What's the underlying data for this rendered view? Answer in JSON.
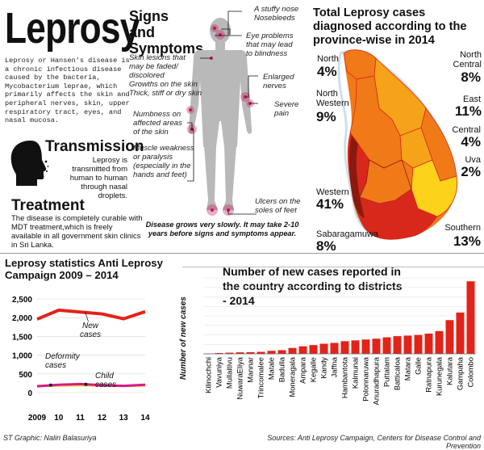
{
  "title": "Leprosy",
  "intro": "Leprosy or Hansen's disease is a chronic infectious disease caused by the bacteria, Mycobacterium leprae, which primarily affects the skin and peripheral nerves, skin, upper respiratory tract, eyes, and nasal mucosa.",
  "transmission": {
    "heading": "Transmission",
    "text": "Leprosy is transmitted from human to human through nasal droplets.",
    "icon": "coughing-head-icon"
  },
  "treatment": {
    "heading": "Treatment",
    "text": "The disease is completely curable with MDT treatment,which is freely available in all government skin clinics in Sri Lanka."
  },
  "symptoms": {
    "heading": "Signs and Symptoms",
    "labels": {
      "nose": "A stuffy nose\nNosebleeds",
      "eyes": "Eye problems\nthat may lead\nto blindness",
      "skin": "Skin lesions that\nmay be faded/\ndiscolored\nGrowths on the skin\nThick, stiff or dry skin",
      "nerves": "Enlarged\nnerves",
      "pain": "Severe\npain",
      "numb": "Numbness on\naffected areas\nof the skin",
      "muscle": "Muscle weakness\nor paralysis\n(especially in the\nhands and feet)",
      "ulcers": "Ulcers on the\nsoles of feet"
    },
    "note": "Disease grows very slowly. It may take 2-10 years before signs and symptoms appear."
  },
  "map": {
    "title": "Total Leprosy cases diagnosed according to the province-wise in 2014",
    "provinces": [
      {
        "name": "North",
        "pct": "4%"
      },
      {
        "name": "North Western",
        "pct": "9%"
      },
      {
        "name": "North Central",
        "pct": "8%"
      },
      {
        "name": "East",
        "pct": "11%"
      },
      {
        "name": "Central",
        "pct": "4%"
      },
      {
        "name": "Uva",
        "pct": "2%"
      },
      {
        "name": "Western",
        "pct": "41%"
      },
      {
        "name": "Sabaragamuwa",
        "pct": "8%"
      },
      {
        "name": "Southern",
        "pct": "13%"
      }
    ],
    "colors": {
      "dark": "#8a1a10",
      "red": "#d8281c",
      "orange": "#f07a18",
      "amber": "#f5a319",
      "yellow": "#fcd21a",
      "sea": "#c8ddea"
    }
  },
  "chart_data": [
    {
      "type": "line",
      "title": "Leprosy statistics Anti Leprosy Campaign 2009 – 2014",
      "x": [
        "2009",
        "10",
        "11",
        "12",
        "13",
        "14"
      ],
      "ylim": [
        0,
        2500
      ],
      "yticks": [
        "0",
        "500",
        "1,000",
        "1,500",
        "2,000",
        "2,500"
      ],
      "series": [
        {
          "name": "New cases",
          "values": [
            1960,
            2200,
            2150,
            2100,
            1970,
            2160
          ],
          "color": "#e2231a"
        },
        {
          "name": "Deformity cases",
          "values": [
            180,
            190,
            200,
            190,
            180,
            190
          ],
          "color": "#f4d21a"
        },
        {
          "name": "Child cases",
          "values": [
            170,
            210,
            230,
            200,
            180,
            210
          ],
          "color": "#d61a8a"
        }
      ]
    },
    {
      "type": "bar",
      "title": "Number of new cases reported in the country according to districts - 2014",
      "ylabel": "Number of new cases",
      "categories": [
        "Kilinochchi",
        "Vavuniya",
        "Mullaitivu",
        "NuwaraEliya",
        "Mannar",
        "Trincomalee",
        "Matale",
        "Badulla",
        "Moneragala",
        "Ampara",
        "Kegalle",
        "Kandy",
        "Jaffna",
        "Hambantota",
        "Kalmunai",
        "Polonnaruwa",
        "Anuradhapura",
        "Puttalam",
        "Batticaloa",
        "Matara",
        "Galle",
        "Ratnapura",
        "Kurunegala",
        "Kalutara",
        "Gampaha",
        "Colombo"
      ],
      "values": [
        2,
        5,
        7,
        9,
        10,
        12,
        18,
        22,
        35,
        45,
        52,
        60,
        65,
        75,
        80,
        85,
        90,
        98,
        105,
        108,
        112,
        120,
        135,
        200,
        245,
        430
      ],
      "ylim": [
        0,
        450
      ],
      "color": "#e2231a"
    }
  ],
  "footer": {
    "credit": "ST Graphic: Nalin Balasuriya",
    "sources": "Sources: Anti Leprosy Campaign, Centers for Disease Control and Prevention"
  }
}
